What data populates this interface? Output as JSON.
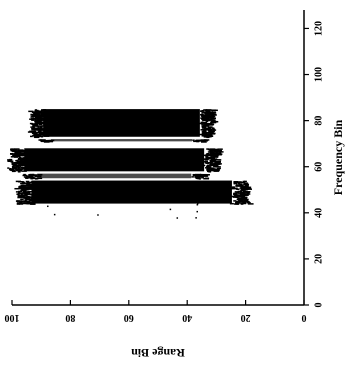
{
  "chart_data": {
    "type": "heatmap",
    "title": "",
    "xlabel": "Range Bin",
    "ylabel": "Frequency Bin",
    "xlim": [
      100,
      0
    ],
    "ylim": [
      0,
      128
    ],
    "x_ticks": [
      100,
      80,
      60,
      40,
      20,
      0
    ],
    "y_ticks": [
      0,
      20,
      40,
      60,
      80,
      100,
      120
    ],
    "x_tick_labels": [
      "100",
      "80",
      "60",
      "40",
      "20",
      "0"
    ],
    "y_tick_labels": [
      "0",
      "20",
      "40",
      "60",
      "80",
      "100",
      "120"
    ],
    "grid": false,
    "colorscale": [
      "#ffffff",
      "#000000"
    ],
    "regions": [
      {
        "range_bin": [
          32,
          93
        ],
        "frequency_bin": [
          73,
          85
        ],
        "intensity": 1
      },
      {
        "range_bin": [
          30,
          100
        ],
        "frequency_bin": [
          58,
          68
        ],
        "intensity": 1
      },
      {
        "range_bin": [
          20,
          98
        ],
        "frequency_bin": [
          44,
          54
        ],
        "intensity": 1
      },
      {
        "range_bin": [
          35,
          90
        ],
        "frequency_bin": [
          71,
          72
        ],
        "intensity": 0.7
      },
      {
        "range_bin": [
          35,
          95
        ],
        "frequency_bin": [
          55,
          57
        ],
        "intensity": 0.7
      }
    ]
  }
}
